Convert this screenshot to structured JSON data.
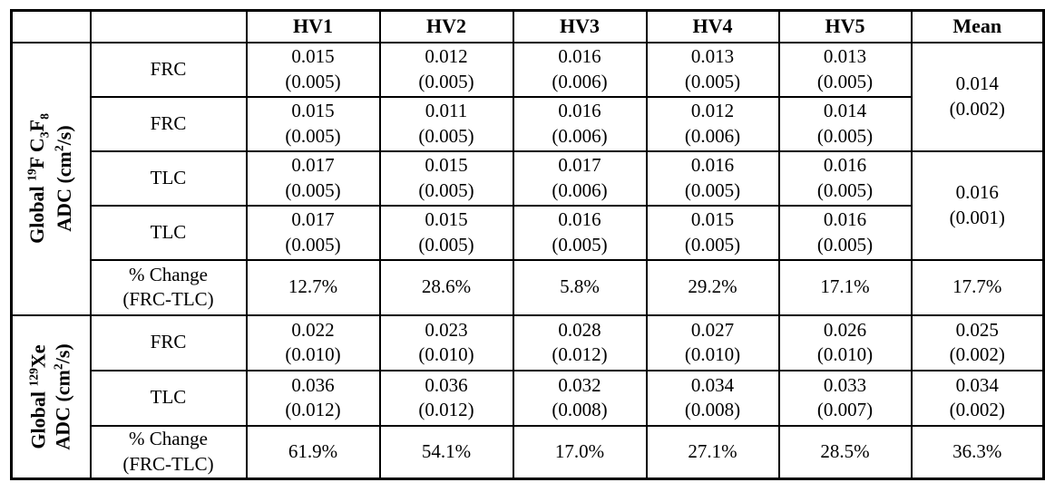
{
  "table": {
    "corner_blank_1": "",
    "corner_blank_2": "",
    "columns": [
      "HV1",
      "HV2",
      "HV3",
      "HV4",
      "HV5",
      "Mean"
    ],
    "group1": {
      "label": [
        {
          "t": "Global "
        },
        {
          "t": "19",
          "s": "sup"
        },
        {
          "t": "F C"
        },
        {
          "t": "3",
          "s": "sub"
        },
        {
          "t": "F"
        },
        {
          "t": "8",
          "s": "sub"
        },
        {
          "t": "\nADC (cm"
        },
        {
          "t": "2",
          "s": "sup"
        },
        {
          "t": "/s)"
        }
      ],
      "rows": {
        "frc1": {
          "label": "FRC",
          "v": [
            "0.015\n(0.005)",
            "0.012\n(0.005)",
            "0.016\n(0.006)",
            "0.013\n(0.005)",
            "0.013\n(0.005)"
          ]
        },
        "frc2": {
          "label": "FRC",
          "v": [
            "0.015\n(0.005)",
            "0.011\n(0.005)",
            "0.016\n(0.006)",
            "0.012\n(0.006)",
            "0.014\n(0.005)"
          ]
        },
        "tlc1": {
          "label": "TLC",
          "v": [
            "0.017\n(0.005)",
            "0.015\n(0.005)",
            "0.017\n(0.006)",
            "0.016\n(0.005)",
            "0.016\n(0.005)"
          ]
        },
        "tlc2": {
          "label": "TLC",
          "v": [
            "0.017\n(0.005)",
            "0.015\n(0.005)",
            "0.016\n(0.005)",
            "0.015\n(0.005)",
            "0.016\n(0.005)"
          ]
        }
      },
      "mean_frc": "0.014\n(0.002)",
      "mean_tlc": "0.016\n(0.001)",
      "pct": {
        "label": "% Change\n(FRC-TLC)",
        "v": [
          "12.7%",
          "28.6%",
          "5.8%",
          "29.2%",
          "17.1%",
          "17.7%"
        ]
      }
    },
    "group2": {
      "label": [
        {
          "t": "Global "
        },
        {
          "t": "129",
          "s": "sup"
        },
        {
          "t": "Xe\nADC (cm"
        },
        {
          "t": "2",
          "s": "sup"
        },
        {
          "t": "/s)"
        }
      ],
      "rows": {
        "frc": {
          "label": "FRC",
          "v": [
            "0.022\n(0.010)",
            "0.023\n(0.010)",
            "0.028\n(0.012)",
            "0.027\n(0.010)",
            "0.026\n(0.010)",
            "0.025\n(0.002)"
          ]
        },
        "tlc": {
          "label": "TLC",
          "v": [
            "0.036\n(0.012)",
            "0.036\n(0.012)",
            "0.032\n(0.008)",
            "0.034\n(0.008)",
            "0.033\n(0.007)",
            "0.034\n(0.002)"
          ]
        }
      },
      "pct": {
        "label": "% Change\n(FRC-TLC)",
        "v": [
          "61.9%",
          "54.1%",
          "17.0%",
          "27.1%",
          "28.5%",
          "36.3%"
        ]
      }
    }
  }
}
